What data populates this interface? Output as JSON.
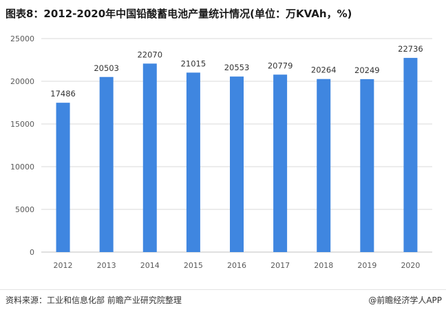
{
  "title": "图表8：2012-2020年中国铅酸蓄电池产量统计情况(单位：万KVAh，%)",
  "footer": {
    "source": "资料来源：工业和信息化部 前瞻产业研究院整理",
    "brand": "@前瞻经济学人APP"
  },
  "colors": {
    "bar": "#3f86e0",
    "grid": "#d9d9d9",
    "axis": "#bfbfbf"
  },
  "chart_data": {
    "type": "bar",
    "categories": [
      "2012",
      "2013",
      "2014",
      "2015",
      "2016",
      "2017",
      "2018",
      "2019",
      "2020"
    ],
    "values": [
      17486,
      20503,
      22070,
      21015,
      20553,
      20779,
      20264,
      20249,
      22736
    ],
    "data_labels": [
      "17486",
      "20503",
      "22070",
      "21015",
      "20553",
      "20779",
      "20264",
      "20249",
      "22736"
    ],
    "ylim": [
      0,
      25000
    ],
    "yticks": [
      0,
      5000,
      10000,
      15000,
      20000,
      25000
    ],
    "ytick_labels": [
      "0",
      "5000",
      "10000",
      "15000",
      "20000",
      "25000"
    ],
    "grid": true,
    "legend": "none"
  }
}
